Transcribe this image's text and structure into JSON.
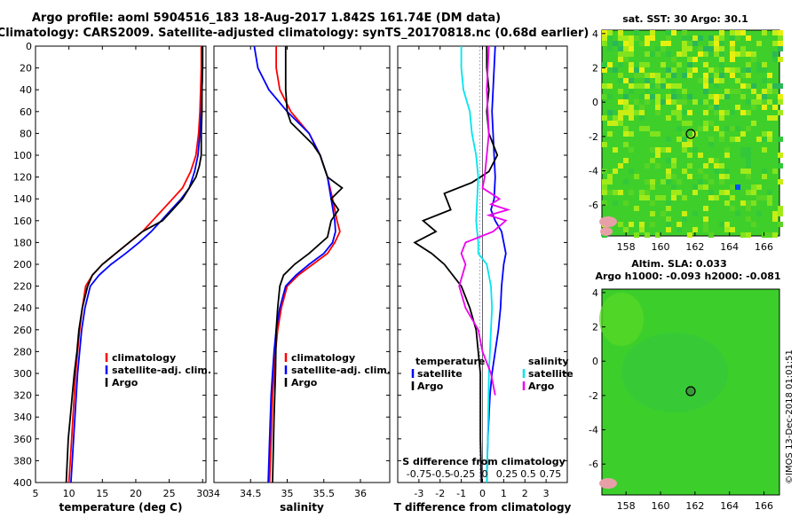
{
  "header": {
    "line1": "Argo profile: aoml 5904516_183 18-Aug-2017 1.842S 161.74E (DM data)",
    "line2": "Climatology: CARS2009. Satellite-adjusted climatology: synTS_20170818.nc (0.68d earlier)"
  },
  "colors": {
    "climatology": "#ff0000",
    "satellite": "#0000ff",
    "argo": "#000000",
    "sat_salinity": "#00e5ee",
    "argo_salinity": "#ee00ee"
  },
  "maps": {
    "sst_title": "sat. SST: 30 Argo: 30.1",
    "sla_title1": "Altim. SLA: 0.033",
    "sla_title2": "Argo h1000: -0.093 h2000: -0.081",
    "lon_ticks": [
      "158",
      "160",
      "162",
      "164",
      "166"
    ],
    "lat_ticks": [
      "4",
      "2",
      "0",
      "-2",
      "-4",
      "-6"
    ],
    "float_lon": 161.74,
    "float_lat": -1.842
  },
  "stamp": "©IMOS 13-Dec-2018 01:01:51",
  "chart_data": [
    {
      "type": "line",
      "title": "",
      "xlabel": "temperature (deg C)",
      "ylabel": "depth",
      "xlim": [
        5,
        30.5
      ],
      "ylim": [
        400,
        0
      ],
      "xticks": [
        "5",
        "10",
        "15",
        "20",
        "25",
        "30"
      ],
      "yticks": [
        "0",
        "20",
        "40",
        "60",
        "80",
        "100",
        "120",
        "140",
        "160",
        "180",
        "200",
        "220",
        "240",
        "260",
        "280",
        "300",
        "320",
        "340",
        "360",
        "380",
        "400"
      ],
      "legend": [
        "climatology",
        "satellite-adj. clim.",
        "Argo"
      ],
      "series": [
        {
          "name": "climatology",
          "x": [
            29.8,
            29.8,
            29.7,
            29.6,
            29.4,
            29.0,
            28.2,
            27.0,
            25.5,
            24.0,
            22.5,
            21.0,
            19.0,
            17.0,
            15.0,
            13.5,
            12.5,
            12.0,
            11.6,
            11.3,
            11.0,
            10.8,
            10.6,
            10.4,
            10.2,
            10.0
          ],
          "y": [
            0,
            20,
            40,
            60,
            80,
            100,
            115,
            130,
            140,
            150,
            160,
            170,
            180,
            190,
            200,
            210,
            220,
            240,
            260,
            280,
            300,
            320,
            340,
            360,
            380,
            400
          ]
        },
        {
          "name": "satellite-adj. clim.",
          "x": [
            30.0,
            30.0,
            29.9,
            29.8,
            29.6,
            29.3,
            28.8,
            28.0,
            26.8,
            25.3,
            23.8,
            22.3,
            20.5,
            18.5,
            16.3,
            14.5,
            13.2,
            12.4,
            11.9,
            11.6,
            11.3,
            11.1,
            10.9,
            10.7,
            10.5,
            10.3
          ],
          "y": [
            0,
            20,
            40,
            60,
            80,
            100,
            115,
            130,
            140,
            150,
            160,
            170,
            180,
            190,
            200,
            210,
            220,
            240,
            260,
            280,
            300,
            320,
            340,
            360,
            380,
            400
          ]
        },
        {
          "name": "Argo",
          "x": [
            30.0,
            30.0,
            29.9,
            29.9,
            29.8,
            29.8,
            29.5,
            29.0,
            28.0,
            27.0,
            25.5,
            24.0,
            22.5,
            21.0,
            19.0,
            17.0,
            15.0,
            13.5,
            12.8,
            12.0,
            11.5,
            11.2,
            10.8,
            10.5,
            10.2,
            9.9,
            9.6
          ],
          "y": [
            0,
            20,
            40,
            60,
            80,
            100,
            110,
            120,
            130,
            140,
            150,
            160,
            165,
            170,
            180,
            190,
            200,
            210,
            220,
            240,
            260,
            280,
            300,
            320,
            340,
            360,
            400
          ]
        }
      ]
    },
    {
      "type": "line",
      "title": "",
      "xlabel": "salinity",
      "ylabel": "depth",
      "xlim": [
        34,
        36.4
      ],
      "ylim": [
        400,
        0
      ],
      "xticks": [
        "34",
        "34.5",
        "35",
        "35.5",
        "36"
      ],
      "legend": [
        "climatology",
        "satellite-adj. clim.",
        "Argo"
      ],
      "series": [
        {
          "name": "climatology",
          "x": [
            34.85,
            34.85,
            34.9,
            35.05,
            35.3,
            35.45,
            35.55,
            35.62,
            35.68,
            35.72,
            35.65,
            35.55,
            35.35,
            35.15,
            35.0,
            34.92,
            34.87,
            34.84,
            34.82,
            34.8,
            34.78,
            34.76
          ],
          "y": [
            0,
            20,
            40,
            60,
            80,
            100,
            120,
            140,
            160,
            170,
            180,
            190,
            200,
            210,
            220,
            240,
            260,
            280,
            300,
            320,
            360,
            400
          ]
        },
        {
          "name": "satellite-adj. clim.",
          "x": [
            34.55,
            34.6,
            34.75,
            35.0,
            35.3,
            35.45,
            35.55,
            35.6,
            35.65,
            35.66,
            35.62,
            35.5,
            35.3,
            35.12,
            34.98,
            34.9,
            34.85,
            34.82,
            34.8,
            34.78,
            34.76,
            34.74
          ],
          "y": [
            0,
            20,
            40,
            60,
            80,
            100,
            120,
            140,
            160,
            170,
            180,
            190,
            200,
            210,
            220,
            240,
            260,
            280,
            300,
            320,
            360,
            400
          ]
        },
        {
          "name": "Argo",
          "x": [
            34.98,
            34.98,
            34.98,
            35.0,
            35.05,
            35.2,
            35.35,
            35.45,
            35.55,
            35.75,
            35.6,
            35.7,
            35.6,
            35.55,
            35.3,
            35.1,
            34.95,
            34.9,
            34.87,
            34.85,
            34.84,
            34.82,
            34.8
          ],
          "y": [
            0,
            20,
            40,
            60,
            70,
            80,
            90,
            100,
            120,
            130,
            140,
            150,
            160,
            175,
            190,
            200,
            210,
            220,
            240,
            260,
            300,
            340,
            400
          ]
        }
      ]
    },
    {
      "type": "line",
      "title": "",
      "xlabel": "T difference from climatology",
      "ylabel": "depth",
      "xlim": [
        -4,
        4
      ],
      "ylim": [
        400,
        0
      ],
      "xticks": [
        "-3",
        "-2",
        "-1",
        "0",
        "1",
        "2",
        "3"
      ],
      "top_label": "S difference from climatology",
      "top_ticks": [
        "-0.75",
        "-0.5",
        "-0.25",
        "0",
        "0.25",
        "0.5",
        "0.75"
      ],
      "legend_temperature": [
        "temperature",
        "satellite",
        "Argo"
      ],
      "legend_salinity": [
        "salinity",
        "satellite",
        "Argo"
      ],
      "series": [
        {
          "name": "T satellite",
          "x": [
            0.6,
            0.55,
            0.5,
            0.45,
            0.5,
            0.55,
            0.6,
            0.55,
            0.4,
            0.6,
            0.9,
            1.0,
            1.1,
            1.0,
            0.9,
            0.85,
            0.75,
            0.6,
            0.45,
            0.35,
            0.25,
            0.2
          ],
          "y": [
            0,
            20,
            40,
            60,
            80,
            100,
            120,
            140,
            150,
            160,
            170,
            180,
            190,
            200,
            220,
            240,
            260,
            280,
            300,
            320,
            360,
            400
          ]
        },
        {
          "name": "T Argo",
          "x": [
            0.2,
            0.2,
            0.3,
            0.2,
            0.3,
            0.7,
            0.3,
            -0.5,
            -1.8,
            -1.5,
            -2.8,
            -2.2,
            -3.2,
            -2.4,
            -1.8,
            -1.0,
            -0.6,
            -0.3,
            -0.2,
            -0.1,
            -0.1,
            -0.05
          ],
          "y": [
            0,
            20,
            40,
            60,
            80,
            100,
            115,
            125,
            135,
            150,
            160,
            170,
            180,
            190,
            200,
            220,
            240,
            260,
            280,
            300,
            360,
            400
          ]
        },
        {
          "name": "S satellite",
          "x": [
            -1.0,
            -1.0,
            -0.9,
            -0.6,
            -0.5,
            -0.3,
            -0.2,
            -0.25,
            -0.3,
            -0.2,
            -0.2,
            0.2,
            0.4,
            0.45,
            0.4,
            0.35,
            0.3,
            0.25,
            0.2
          ],
          "y": [
            0,
            20,
            40,
            60,
            80,
            100,
            120,
            140,
            160,
            180,
            190,
            200,
            220,
            240,
            260,
            280,
            300,
            360,
            400
          ]
        },
        {
          "name": "S Argo",
          "x": [
            0.3,
            0.2,
            0.3,
            0.1,
            0.0,
            0.8,
            0.4,
            1.2,
            0.3,
            1.1,
            0.5,
            -0.8,
            -1.0,
            -0.8,
            -1.1,
            -0.8,
            -0.2,
            0.0,
            0.4,
            0.6
          ],
          "y": [
            0,
            40,
            80,
            120,
            130,
            140,
            145,
            150,
            155,
            160,
            170,
            180,
            190,
            200,
            220,
            240,
            260,
            280,
            300,
            320
          ]
        }
      ]
    }
  ]
}
